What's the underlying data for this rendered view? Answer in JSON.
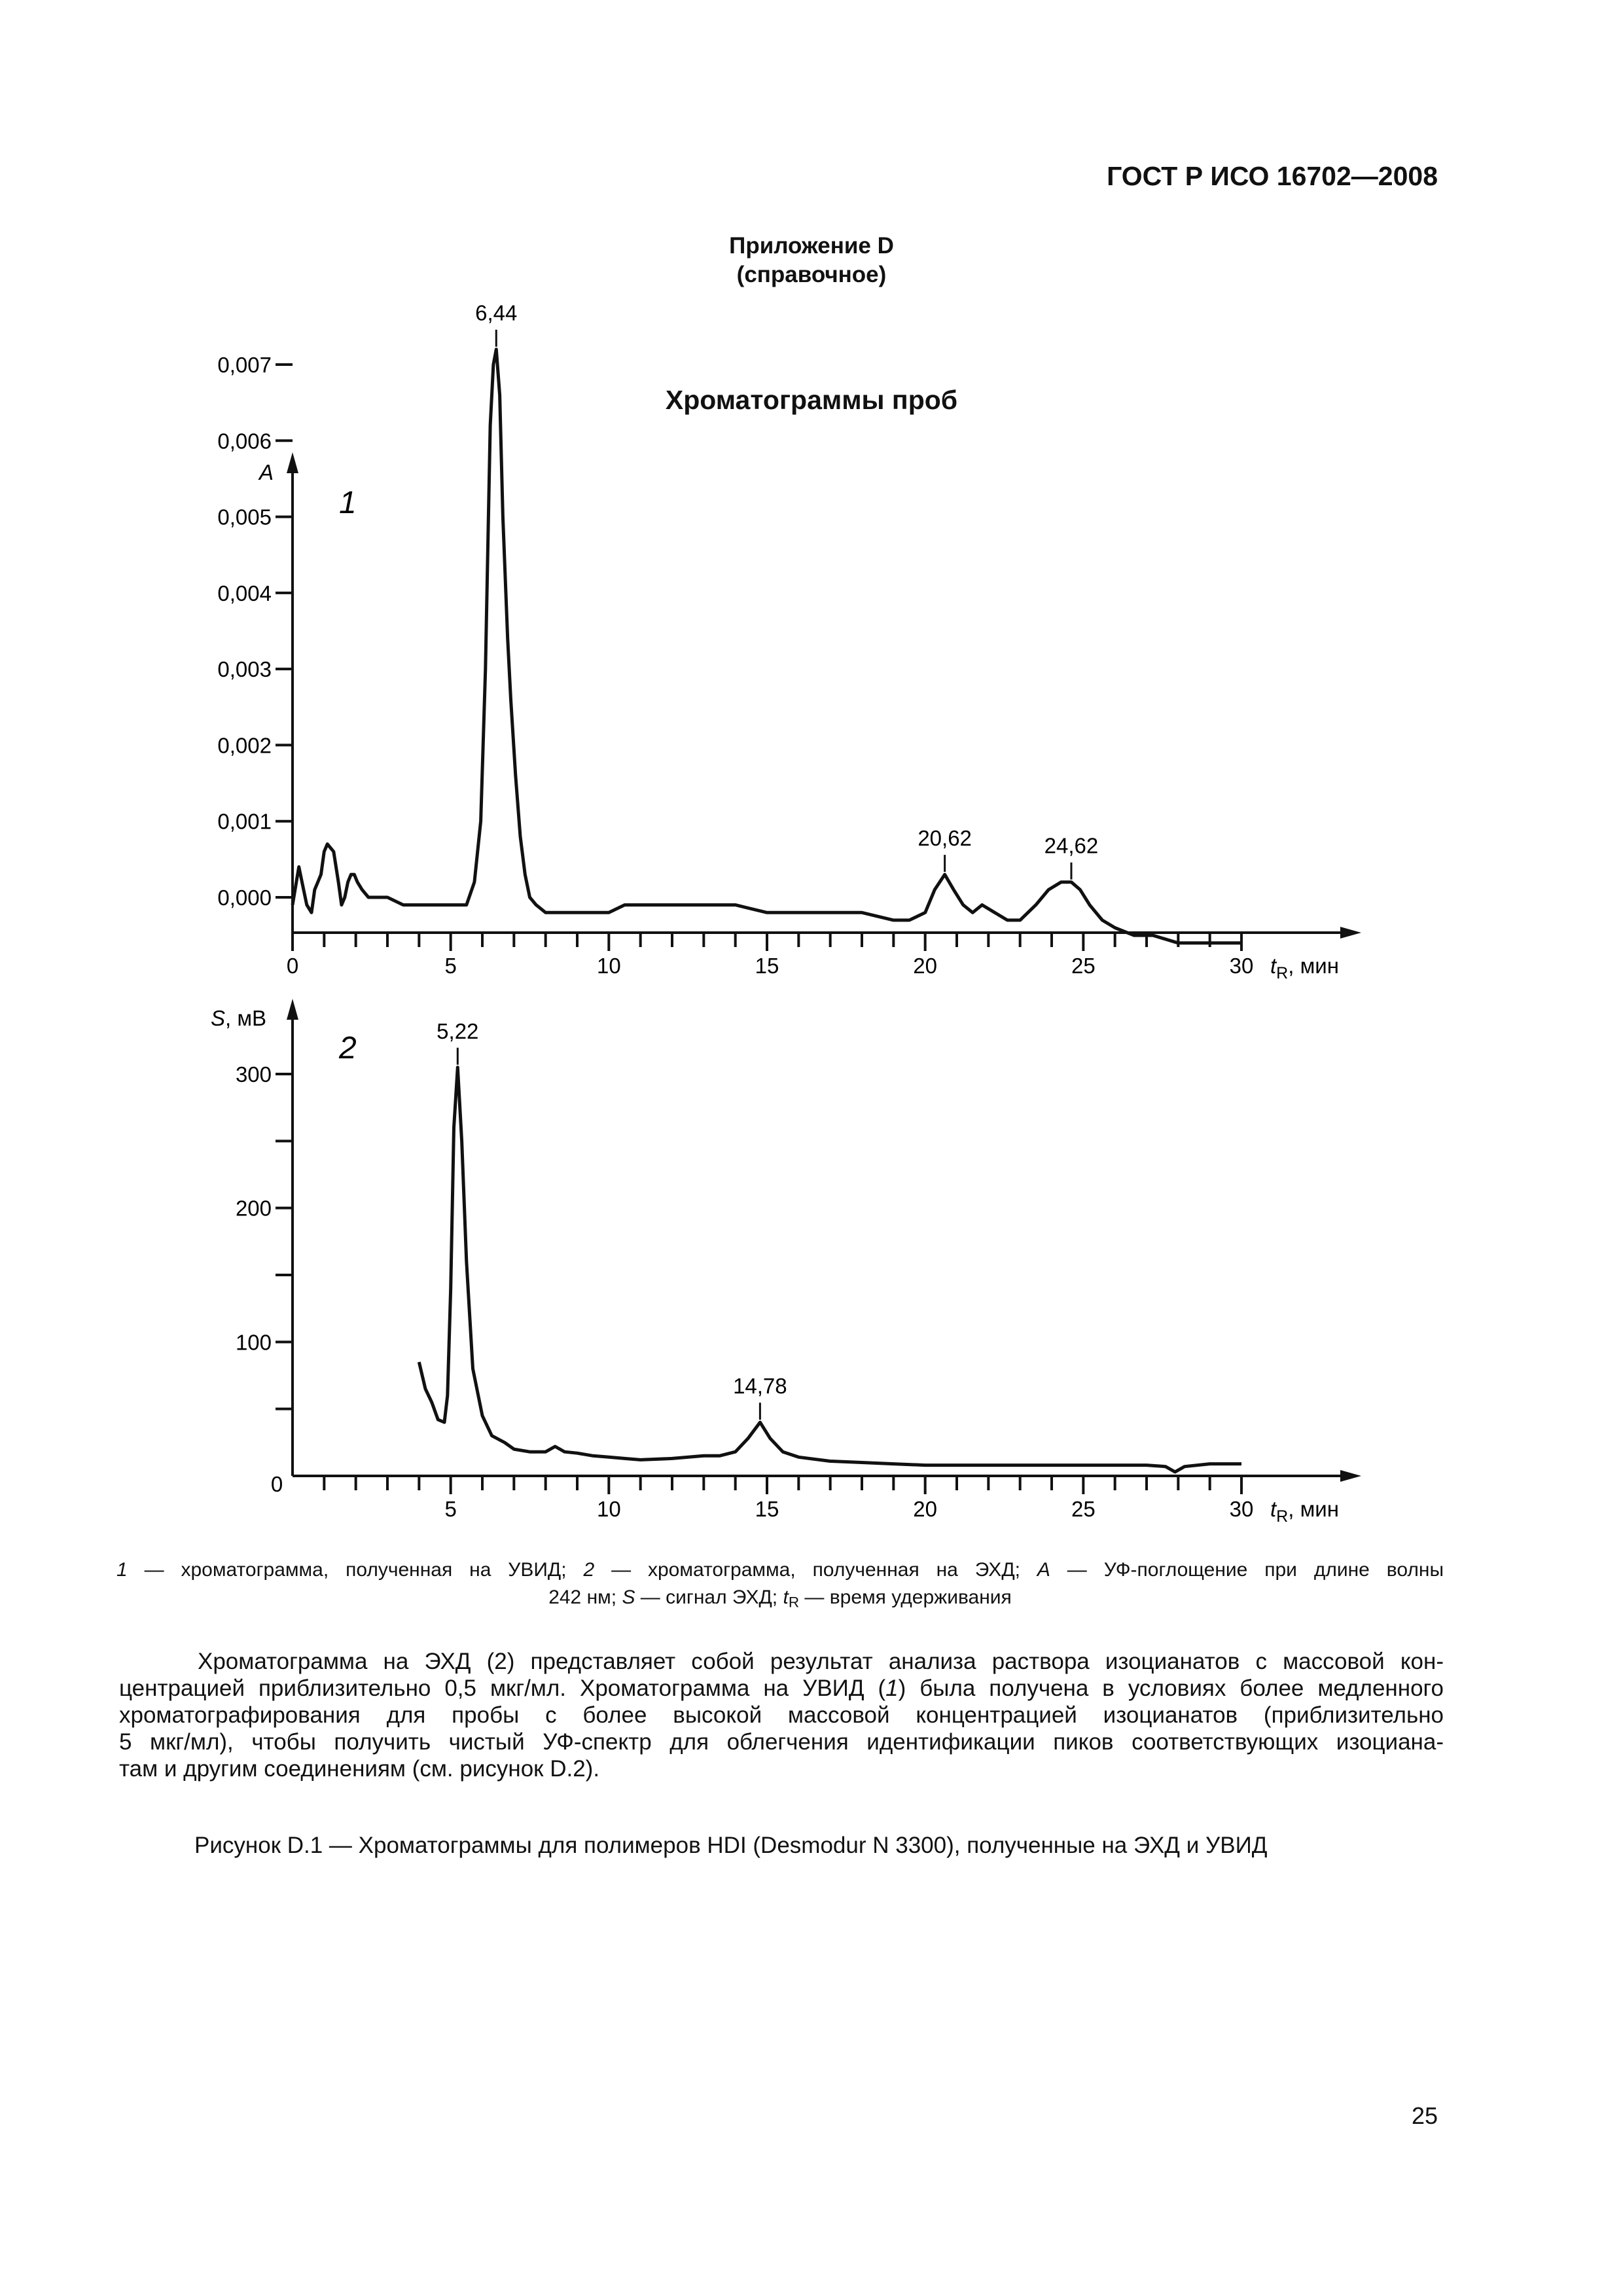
{
  "header": {
    "doc_id": "ГОСТ Р ИСО 16702—2008"
  },
  "annex": {
    "title": "Приложение D",
    "status": "(справочное)"
  },
  "figure_heading": "Хроматограммы проб",
  "chart_data": [
    {
      "type": "line",
      "panel_label": "1",
      "ylabel": "A",
      "xlabel_var": "t",
      "xlabel_sub": "R",
      "xlabel_unit": ", мин",
      "xlim": [
        0,
        31
      ],
      "ylim": [
        -0.0006,
        0.0078
      ],
      "xticks": [
        0,
        5,
        10,
        15,
        20,
        25,
        30
      ],
      "xtick_labels": [
        "0",
        "5",
        "10",
        "15",
        "20",
        "25",
        "30"
      ],
      "yticks": [
        0.0,
        0.001,
        0.002,
        0.003,
        0.004,
        0.005,
        0.006,
        0.007
      ],
      "ytick_labels": [
        "0,000",
        "0,001",
        "0,002",
        "0,003",
        "0,004",
        "0,005",
        "0,006",
        "0,007"
      ],
      "peaks": [
        {
          "x": 6.44,
          "y": 0.0072,
          "label": "6,44"
        },
        {
          "x": 20.62,
          "y": 0.0003,
          "label": "20,62"
        },
        {
          "x": 24.62,
          "y": 0.0002,
          "label": "24,62"
        }
      ],
      "series": [
        {
          "x": [
            0,
            0.2,
            0.35,
            0.45,
            0.6,
            0.7,
            0.8,
            0.9,
            1.0,
            1.1,
            1.3,
            1.45,
            1.55,
            1.65,
            1.75,
            1.85,
            1.95,
            2.05,
            2.2,
            2.4,
            2.6,
            3.0,
            3.5,
            4.0,
            4.5,
            5.0,
            5.5,
            5.75,
            5.95,
            6.1,
            6.25,
            6.35,
            6.44,
            6.55,
            6.65,
            6.8,
            6.9,
            7.05,
            7.2,
            7.35,
            7.5,
            7.7,
            8.0,
            9.0,
            10.0,
            10.5,
            11.0,
            12.0,
            13.0,
            14.0,
            15.0,
            16.0,
            17.0,
            18.0,
            19.0,
            19.5,
            20.0,
            20.3,
            20.62,
            20.9,
            21.2,
            21.5,
            21.8,
            22.2,
            22.6,
            23.0,
            23.5,
            23.9,
            24.3,
            24.62,
            24.9,
            25.2,
            25.6,
            26.0,
            26.6,
            27.2,
            28.0,
            29.0,
            30.0
          ],
          "y": [
            -0.0001,
            0.0004,
            0.0001,
            -0.0001,
            -0.0002,
            0.0001,
            0.0002,
            0.0003,
            0.0006,
            0.0007,
            0.0006,
            0.0002,
            -0.0001,
            0.0,
            0.0002,
            0.0003,
            0.0003,
            0.0002,
            0.0001,
            0.0,
            0.0,
            0.0,
            -0.0001,
            -0.0001,
            -0.0001,
            -0.0001,
            -0.0001,
            0.0002,
            0.001,
            0.003,
            0.0062,
            0.007,
            0.0072,
            0.0066,
            0.005,
            0.0034,
            0.0026,
            0.0016,
            0.0008,
            0.0003,
            0.0,
            -0.0001,
            -0.0002,
            -0.0002,
            -0.0002,
            -0.0001,
            -0.0001,
            -0.0001,
            -0.0001,
            -0.0001,
            -0.0002,
            -0.0002,
            -0.0002,
            -0.0002,
            -0.0003,
            -0.0003,
            -0.0002,
            0.0001,
            0.0003,
            0.0001,
            -0.0001,
            -0.0002,
            -0.0001,
            -0.0002,
            -0.0003,
            -0.0003,
            -0.0001,
            0.0001,
            0.0002,
            0.0002,
            0.0001,
            -0.0001,
            -0.0003,
            -0.0004,
            -0.0005,
            -0.0005,
            -0.0006,
            -0.0006,
            -0.0006
          ]
        }
      ]
    },
    {
      "type": "line",
      "panel_label": "2",
      "ylabel_var": "S",
      "ylabel_unit": ", мВ",
      "xlabel_var": "t",
      "xlabel_sub": "R",
      "xlabel_unit": ", мин",
      "xlim": [
        0,
        31
      ],
      "ylim": [
        0,
        340
      ],
      "xticks": [
        5,
        10,
        15,
        20,
        25,
        30
      ],
      "xtick_labels": [
        "5",
        "10",
        "15",
        "20",
        "25",
        "30"
      ],
      "origin_label": "0",
      "yticks": [
        50,
        100,
        150,
        200,
        250,
        300
      ],
      "ytick_labels": [
        "",
        "100",
        "",
        "200",
        "",
        "300"
      ],
      "peaks": [
        {
          "x": 5.22,
          "y": 305,
          "label": "5,22"
        },
        {
          "x": 14.78,
          "y": 40,
          "label": "14,78"
        }
      ],
      "series": [
        {
          "x": [
            4.0,
            4.2,
            4.4,
            4.6,
            4.8,
            4.9,
            5.0,
            5.1,
            5.22,
            5.35,
            5.5,
            5.7,
            6.0,
            6.3,
            6.7,
            7.0,
            7.5,
            8.0,
            8.3,
            8.6,
            9.0,
            9.5,
            10.0,
            10.5,
            11.0,
            12.0,
            13.0,
            13.5,
            14.0,
            14.4,
            14.78,
            15.1,
            15.5,
            16.0,
            17.0,
            18.0,
            19.0,
            20.0,
            21.0,
            22.0,
            23.0,
            24.0,
            25.0,
            26.0,
            27.0,
            27.6,
            27.9,
            28.2,
            29.0,
            30.0
          ],
          "y": [
            85,
            65,
            55,
            42,
            40,
            60,
            140,
            260,
            305,
            250,
            160,
            80,
            45,
            30,
            25,
            20,
            18,
            18,
            22,
            18,
            17,
            15,
            14,
            13,
            12,
            13,
            15,
            15,
            18,
            28,
            40,
            28,
            18,
            14,
            11,
            10,
            9,
            8,
            8,
            8,
            8,
            8,
            8,
            8,
            8,
            7,
            3,
            7,
            9,
            9
          ]
        }
      ]
    }
  ],
  "legend_parts": {
    "n1": "1",
    "t1": " — хроматограмма, полученная на УВИД; ",
    "n2": "2",
    "t2": " — хроматограмма, полученная на ЭХД; ",
    "a": "A",
    "t3": " — УФ-поглощение при длине волны",
    "t4": "242 нм; ",
    "s": "S",
    "t5": " — сигнал ЭХД; ",
    "tr": "t",
    "trs": "R",
    "t6": " — время удерживания"
  },
  "note": {
    "l1a": "Хроматограмма на ЭХД (",
    "l1n": "2",
    "l1b": ") представляет собой результат анализа раствора изоцианатов с массовой кон-",
    "l2a": "центрацией приблизительно 0,5 мкг/мл. Хроматограмма на УВИД (",
    "l2n": "1",
    "l2b": ") была получена в условиях более медленного",
    "l3": "хроматографирования для пробы с более высокой массовой концентрацией изоцианатов (приблизительно",
    "l4": "5 мкг/мл), чтобы получить чистый УФ-спектр для облегчения идентификации пиков соответствующих изоциана-",
    "l5": "там и другим соединениям (см. рисунок D.2)."
  },
  "figure_caption": "Рисунок D.1 — Хроматограммы для полимеров HDI (Desmodur N 3300), полученные на ЭХД и УВИД",
  "page_number": "25"
}
